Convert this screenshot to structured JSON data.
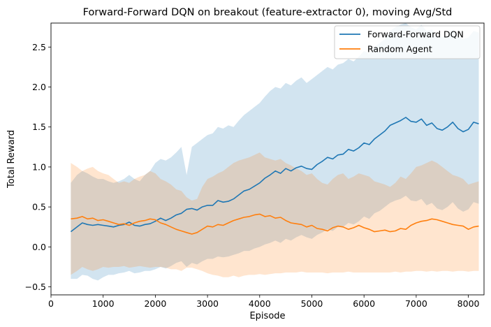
{
  "chart_data": {
    "type": "line",
    "title": "Forward-Forward DQN on breakout (feature-extractor 0), moving Avg/Std",
    "xlabel": "Episode",
    "ylabel": "Total Reward",
    "xlim": [
      0,
      8300
    ],
    "ylim": [
      -0.6,
      2.8
    ],
    "xticks": [
      0,
      1000,
      2000,
      3000,
      4000,
      5000,
      6000,
      7000,
      8000
    ],
    "yticks": [
      -0.5,
      0.0,
      0.5,
      1.0,
      1.5,
      2.0,
      2.5
    ],
    "grid": false,
    "legend_position": "top-right",
    "series": [
      {
        "name": "Forward-Forward DQN",
        "color": "#1f77b4",
        "fill_alpha": 0.2,
        "x": [
          380,
          500,
          600,
          700,
          800,
          900,
          1000,
          1100,
          1200,
          1300,
          1400,
          1500,
          1600,
          1700,
          1800,
          1900,
          2000,
          2100,
          2200,
          2300,
          2400,
          2500,
          2600,
          2700,
          2800,
          2900,
          3000,
          3100,
          3200,
          3300,
          3400,
          3500,
          3600,
          3700,
          3800,
          3900,
          4000,
          4100,
          4200,
          4300,
          4400,
          4500,
          4600,
          4700,
          4800,
          4900,
          5000,
          5100,
          5200,
          5300,
          5400,
          5500,
          5600,
          5700,
          5800,
          5900,
          6000,
          6100,
          6200,
          6300,
          6400,
          6500,
          6600,
          6700,
          6800,
          6900,
          7000,
          7100,
          7200,
          7300,
          7400,
          7500,
          7600,
          7700,
          7800,
          7900,
          8000,
          8100,
          8200
        ],
        "mean": [
          0.19,
          0.25,
          0.3,
          0.28,
          0.27,
          0.28,
          0.27,
          0.26,
          0.25,
          0.27,
          0.28,
          0.31,
          0.27,
          0.26,
          0.28,
          0.29,
          0.32,
          0.36,
          0.33,
          0.36,
          0.4,
          0.42,
          0.47,
          0.48,
          0.46,
          0.5,
          0.52,
          0.52,
          0.58,
          0.56,
          0.57,
          0.6,
          0.65,
          0.7,
          0.72,
          0.76,
          0.8,
          0.86,
          0.9,
          0.95,
          0.92,
          0.98,
          0.95,
          0.99,
          1.01,
          0.98,
          0.97,
          1.03,
          1.07,
          1.12,
          1.1,
          1.15,
          1.16,
          1.22,
          1.2,
          1.24,
          1.3,
          1.28,
          1.35,
          1.4,
          1.45,
          1.52,
          1.55,
          1.58,
          1.62,
          1.57,
          1.56,
          1.6,
          1.52,
          1.55,
          1.48,
          1.46,
          1.5,
          1.56,
          1.48,
          1.44,
          1.47,
          1.56,
          1.54
        ],
        "upper": [
          0.8,
          0.9,
          0.95,
          0.92,
          0.88,
          0.85,
          0.85,
          0.82,
          0.8,
          0.82,
          0.85,
          0.9,
          0.85,
          0.82,
          0.9,
          0.95,
          1.05,
          1.1,
          1.08,
          1.12,
          1.18,
          1.25,
          0.9,
          1.25,
          1.3,
          1.35,
          1.4,
          1.42,
          1.5,
          1.48,
          1.52,
          1.5,
          1.58,
          1.65,
          1.7,
          1.75,
          1.8,
          1.88,
          1.95,
          2.0,
          1.98,
          2.05,
          2.02,
          2.08,
          2.12,
          2.05,
          2.1,
          2.15,
          2.2,
          2.25,
          2.22,
          2.28,
          2.3,
          2.35,
          2.32,
          2.38,
          2.45,
          2.42,
          2.5,
          2.55,
          2.6,
          2.7,
          2.75,
          2.78,
          2.8,
          2.75,
          2.72,
          2.78,
          2.7,
          2.72,
          2.65,
          2.62,
          2.66,
          2.72,
          2.64,
          2.6,
          2.62,
          2.7,
          2.68
        ],
        "lower": [
          -0.4,
          -0.4,
          -0.35,
          -0.36,
          -0.4,
          -0.42,
          -0.38,
          -0.35,
          -0.35,
          -0.33,
          -0.32,
          -0.3,
          -0.33,
          -0.32,
          -0.3,
          -0.3,
          -0.28,
          -0.25,
          -0.27,
          -0.24,
          -0.2,
          -0.18,
          -0.25,
          -0.2,
          -0.22,
          -0.18,
          -0.15,
          -0.15,
          -0.12,
          -0.13,
          -0.12,
          -0.1,
          -0.08,
          -0.05,
          -0.05,
          -0.02,
          0.0,
          0.03,
          0.05,
          0.08,
          0.05,
          0.1,
          0.08,
          0.12,
          0.15,
          0.12,
          0.1,
          0.15,
          0.18,
          0.22,
          0.2,
          0.25,
          0.25,
          0.3,
          0.28,
          0.32,
          0.38,
          0.35,
          0.42,
          0.45,
          0.5,
          0.55,
          0.58,
          0.6,
          0.64,
          0.58,
          0.57,
          0.6,
          0.52,
          0.55,
          0.48,
          0.46,
          0.5,
          0.56,
          0.48,
          0.44,
          0.47,
          0.56,
          0.54
        ]
      },
      {
        "name": "Random Agent",
        "color": "#ff7f0e",
        "fill_alpha": 0.2,
        "x": [
          380,
          500,
          600,
          700,
          800,
          900,
          1000,
          1100,
          1200,
          1300,
          1400,
          1500,
          1600,
          1700,
          1800,
          1900,
          2000,
          2100,
          2200,
          2300,
          2400,
          2500,
          2600,
          2700,
          2800,
          2900,
          3000,
          3100,
          3200,
          3300,
          3400,
          3500,
          3600,
          3700,
          3800,
          3900,
          4000,
          4100,
          4200,
          4300,
          4400,
          4500,
          4600,
          4700,
          4800,
          4900,
          5000,
          5100,
          5200,
          5300,
          5400,
          5500,
          5600,
          5700,
          5800,
          5900,
          6000,
          6100,
          6200,
          6300,
          6400,
          6500,
          6600,
          6700,
          6800,
          6900,
          7000,
          7100,
          7200,
          7300,
          7400,
          7500,
          7600,
          7700,
          7800,
          7900,
          8000,
          8100,
          8200
        ],
        "mean": [
          0.35,
          0.36,
          0.38,
          0.35,
          0.36,
          0.33,
          0.34,
          0.32,
          0.3,
          0.28,
          0.29,
          0.27,
          0.3,
          0.32,
          0.33,
          0.35,
          0.34,
          0.3,
          0.28,
          0.25,
          0.22,
          0.2,
          0.18,
          0.16,
          0.18,
          0.22,
          0.26,
          0.25,
          0.28,
          0.27,
          0.3,
          0.33,
          0.35,
          0.37,
          0.38,
          0.4,
          0.41,
          0.38,
          0.39,
          0.36,
          0.37,
          0.33,
          0.3,
          0.29,
          0.28,
          0.25,
          0.27,
          0.23,
          0.22,
          0.2,
          0.24,
          0.26,
          0.25,
          0.22,
          0.24,
          0.27,
          0.24,
          0.22,
          0.19,
          0.2,
          0.21,
          0.19,
          0.2,
          0.23,
          0.22,
          0.27,
          0.3,
          0.32,
          0.33,
          0.35,
          0.34,
          0.32,
          0.3,
          0.28,
          0.27,
          0.26,
          0.22,
          0.25,
          0.26
        ],
        "upper": [
          1.05,
          1.0,
          0.95,
          0.98,
          1.0,
          0.95,
          0.92,
          0.9,
          0.85,
          0.8,
          0.82,
          0.8,
          0.85,
          0.88,
          0.9,
          0.95,
          0.92,
          0.85,
          0.82,
          0.78,
          0.72,
          0.7,
          0.62,
          0.58,
          0.6,
          0.75,
          0.85,
          0.88,
          0.92,
          0.95,
          1.0,
          1.05,
          1.08,
          1.1,
          1.12,
          1.15,
          1.18,
          1.12,
          1.1,
          1.08,
          1.1,
          1.05,
          1.02,
          0.98,
          0.95,
          0.9,
          0.92,
          0.85,
          0.8,
          0.78,
          0.85,
          0.9,
          0.92,
          0.85,
          0.88,
          0.92,
          0.9,
          0.88,
          0.82,
          0.8,
          0.78,
          0.75,
          0.8,
          0.88,
          0.85,
          0.92,
          1.0,
          1.02,
          1.05,
          1.08,
          1.05,
          1.0,
          0.95,
          0.9,
          0.88,
          0.85,
          0.78,
          0.8,
          0.82
        ],
        "lower": [
          -0.35,
          -0.3,
          -0.25,
          -0.28,
          -0.3,
          -0.28,
          -0.25,
          -0.26,
          -0.25,
          -0.25,
          -0.24,
          -0.26,
          -0.25,
          -0.24,
          -0.25,
          -0.26,
          -0.25,
          -0.25,
          -0.26,
          -0.28,
          -0.28,
          -0.3,
          -0.26,
          -0.26,
          -0.28,
          -0.3,
          -0.33,
          -0.35,
          -0.36,
          -0.38,
          -0.38,
          -0.36,
          -0.38,
          -0.36,
          -0.35,
          -0.35,
          -0.34,
          -0.35,
          -0.34,
          -0.33,
          -0.33,
          -0.32,
          -0.32,
          -0.32,
          -0.31,
          -0.32,
          -0.32,
          -0.32,
          -0.32,
          -0.33,
          -0.32,
          -0.32,
          -0.32,
          -0.31,
          -0.32,
          -0.32,
          -0.32,
          -0.32,
          -0.32,
          -0.32,
          -0.32,
          -0.32,
          -0.31,
          -0.32,
          -0.31,
          -0.31,
          -0.3,
          -0.3,
          -0.31,
          -0.3,
          -0.31,
          -0.3,
          -0.3,
          -0.31,
          -0.3,
          -0.3,
          -0.31,
          -0.3,
          -0.3
        ]
      }
    ]
  }
}
